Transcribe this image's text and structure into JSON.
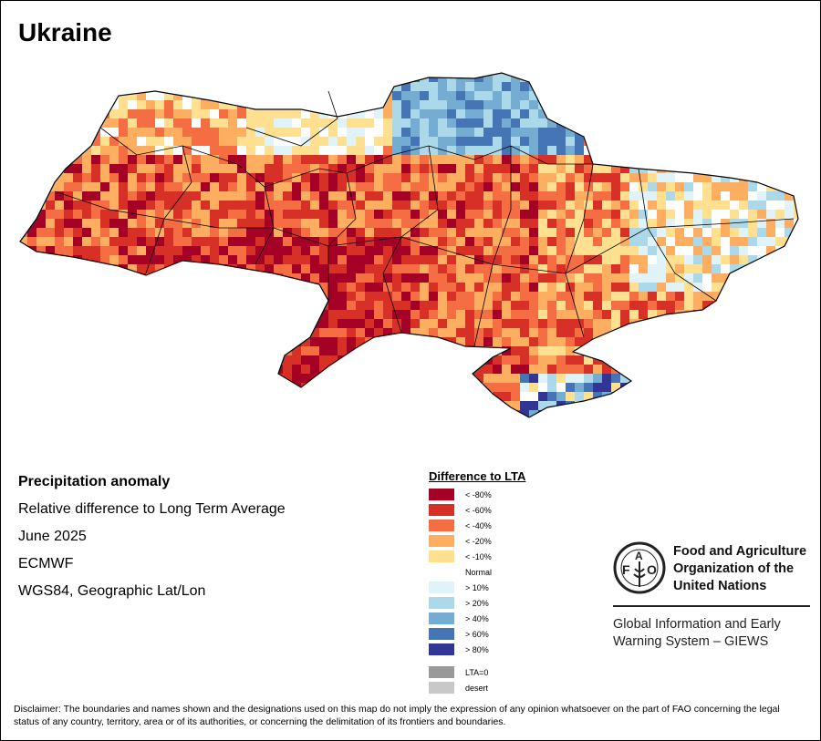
{
  "title": "Ukraine",
  "info": {
    "heading": "Precipitation anomaly",
    "subtitle": "Relative difference to Long Term Average",
    "period": "June 2025",
    "source": "ECMWF",
    "projection": "WGS84, Geographic Lat/Lon"
  },
  "legend": {
    "title": "Difference to LTA",
    "items": [
      {
        "label": "< -80%",
        "color": "#a50026"
      },
      {
        "label": "< -60%",
        "color": "#d73027"
      },
      {
        "label": "< -40%",
        "color": "#f46d43"
      },
      {
        "label": "< -20%",
        "color": "#fdae61"
      },
      {
        "label": "< -10%",
        "color": "#fee090"
      },
      {
        "label": "Normal",
        "color": "#ffffff"
      },
      {
        "label": "> 10%",
        "color": "#e0f3f8"
      },
      {
        "label": "> 20%",
        "color": "#abd9e9"
      },
      {
        "label": "> 40%",
        "color": "#74add1"
      },
      {
        "label": "> 60%",
        "color": "#4575b4"
      },
      {
        "label": "> 80%",
        "color": "#313695"
      }
    ],
    "extra": [
      {
        "label": "LTA=0",
        "color": "#999999"
      },
      {
        "label": "desert",
        "color": "#c8c8c8"
      }
    ]
  },
  "logo": {
    "org_line1": "Food and Agriculture",
    "org_line2": "Organization of the",
    "org_line3": "United Nations",
    "emblem_text": "FAO FIAT PANIS",
    "system_line1": "Global Information and Early",
    "system_line2": "Warning System – GIEWS"
  },
  "disclaimer": "Disclaimer: The boundaries and names shown and the designations used on this map do not imply the expression of any opinion whatsoever on the part of FAO concerning the legal status of any country, territory, area or of its authorities, or concerning the delimitation of its frontiers and boundaries."
}
